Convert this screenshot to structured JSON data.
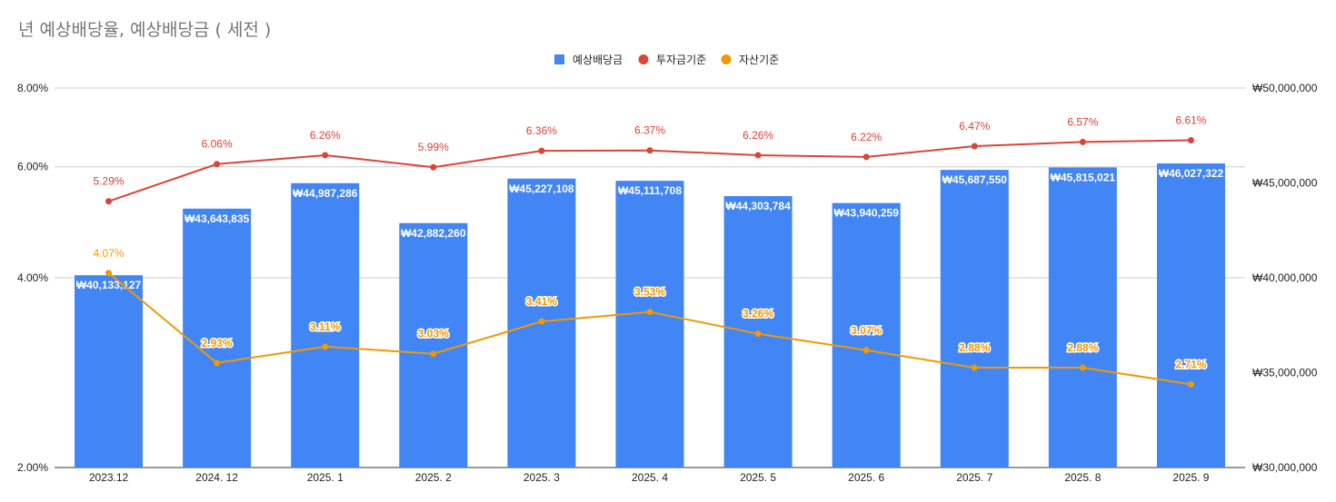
{
  "title": "년 예상배당율, 예상배당금 ( 세전 )",
  "colors": {
    "bar": "#4285f4",
    "line_invest": "#db4437",
    "line_asset": "#f29900",
    "grid": "#cccccc"
  },
  "chart_data": {
    "type": "bar",
    "title": "년 예상배당율, 예상배당금 ( 세전 )",
    "legend_position": "top-center",
    "grid": true,
    "categories": [
      "2023.12",
      "2024. 12",
      "2025. 1",
      "2025. 2",
      "2025. 3",
      "2025. 4",
      "2025. 5",
      "2025. 6",
      "2025. 7",
      "2025. 8",
      "2025. 9"
    ],
    "y_left": {
      "scale": "log",
      "ylim": [
        2.0,
        8.0
      ],
      "ticks": [
        "2.00%",
        "4.00%",
        "6.00%",
        "8.00%"
      ],
      "tick_values": [
        2.0,
        4.0,
        6.0,
        8.0
      ]
    },
    "y_right": {
      "ylim": [
        30000000,
        50000000
      ],
      "ticks": [
        "₩30,000,000",
        "₩35,000,000",
        "₩40,000,000",
        "₩45,000,000",
        "₩50,000,000"
      ],
      "tick_values": [
        30000000,
        35000000,
        40000000,
        45000000,
        50000000
      ]
    },
    "series": [
      {
        "name": "예상배당금",
        "type": "bar",
        "axis": "right",
        "values": [
          40133127,
          43643835,
          44987286,
          42882260,
          45227108,
          45111708,
          44303784,
          43940259,
          45687550,
          45815021,
          46027322
        ],
        "labels": [
          "₩40,133,127",
          "₩43,643,835",
          "₩44,987,286",
          "₩42,882,260",
          "₩45,227,108",
          "₩45,111,708",
          "₩44,303,784",
          "₩43,940,259",
          "₩45,687,550",
          "₩45,815,021",
          "₩46,027,322"
        ]
      },
      {
        "name": "투자금기준",
        "type": "line",
        "axis": "left",
        "values": [
          5.29,
          6.06,
          6.26,
          5.99,
          6.36,
          6.37,
          6.26,
          6.22,
          6.47,
          6.57,
          6.61
        ],
        "labels": [
          "5.29%",
          "6.06%",
          "6.26%",
          "5.99%",
          "6.36%",
          "6.37%",
          "6.26%",
          "6.22%",
          "6.47%",
          "6.57%",
          "6.61%"
        ]
      },
      {
        "name": "자산기준",
        "type": "line",
        "axis": "left",
        "values": [
          4.07,
          2.93,
          3.11,
          3.03,
          3.41,
          3.53,
          3.26,
          3.07,
          2.88,
          2.88,
          2.71
        ],
        "labels": [
          "4.07%",
          "2.93%",
          "3.11%",
          "3.03%",
          "3.41%",
          "3.53%",
          "3.26%",
          "3.07%",
          "2.88%",
          "2.88%",
          "2.71%"
        ]
      }
    ]
  }
}
